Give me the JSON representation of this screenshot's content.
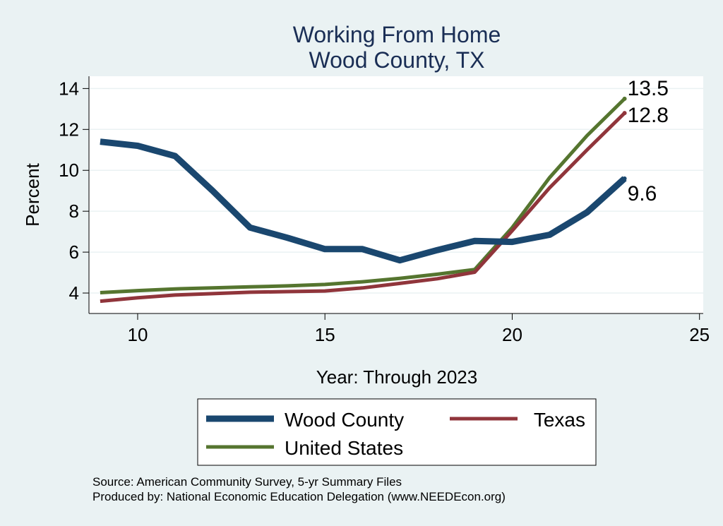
{
  "chart_data": {
    "type": "line",
    "title": [
      "Working From Home",
      "Wood County, TX"
    ],
    "xlabel": "Year: Through 2023",
    "ylabel": "Percent",
    "xlim": [
      8.7,
      25.1
    ],
    "ylim": [
      3.0,
      14.6
    ],
    "xticks": [
      10,
      15,
      20,
      25
    ],
    "yticks": [
      4,
      6,
      8,
      10,
      12,
      14
    ],
    "grid": true,
    "legend_position": "bottom",
    "series": [
      {
        "name": "Wood County",
        "color": "#1a476f",
        "x": [
          9,
          10,
          11,
          12,
          13,
          14,
          15,
          16,
          17,
          18,
          19,
          20,
          21,
          22,
          23
        ],
        "y": [
          11.4,
          11.2,
          10.7,
          9.0,
          7.2,
          6.7,
          6.15,
          6.15,
          5.6,
          6.1,
          6.55,
          6.5,
          6.85,
          7.95,
          9.6
        ],
        "end_label": "9.6"
      },
      {
        "name": "Texas",
        "color": "#90353b",
        "x": [
          9,
          10,
          11,
          12,
          13,
          14,
          15,
          16,
          17,
          18,
          19,
          20,
          21,
          22,
          23
        ],
        "y": [
          3.6,
          3.77,
          3.9,
          3.97,
          4.04,
          4.07,
          4.1,
          4.25,
          4.47,
          4.7,
          5.02,
          7.05,
          9.15,
          11.0,
          12.8
        ],
        "end_label": "12.8"
      },
      {
        "name": "United States",
        "color": "#55752f",
        "x": [
          9,
          10,
          11,
          12,
          13,
          14,
          15,
          16,
          17,
          18,
          19,
          20,
          21,
          22,
          23
        ],
        "y": [
          4.02,
          4.12,
          4.2,
          4.25,
          4.3,
          4.35,
          4.42,
          4.55,
          4.72,
          4.92,
          5.15,
          7.2,
          9.65,
          11.7,
          13.5
        ],
        "end_label": "13.5"
      }
    ]
  },
  "footer": {
    "source": "Source: American Community Survey, 5-yr Summary Files",
    "produced_by": "Produced by: National Economic Education Delegation (www.NEEDEcon.org)"
  }
}
